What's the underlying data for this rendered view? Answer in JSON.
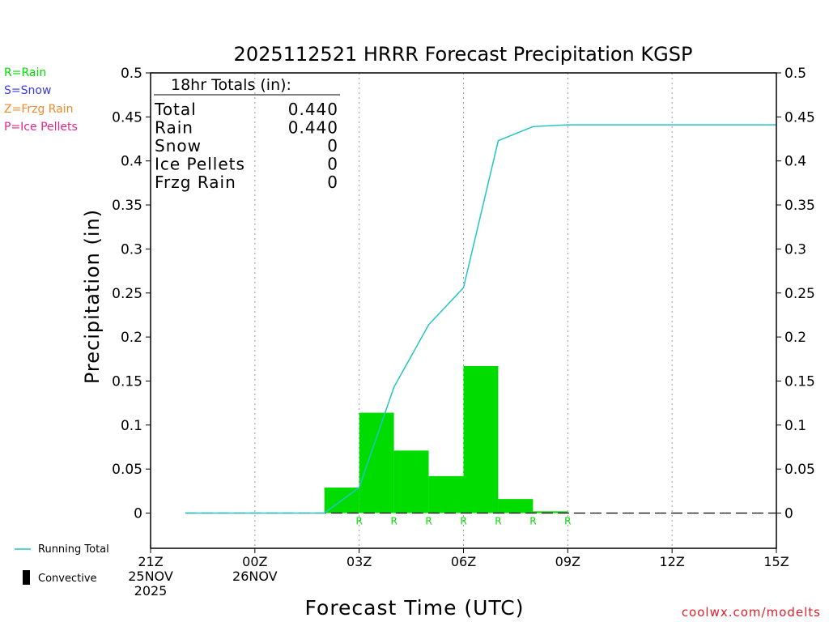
{
  "chart_data": {
    "type": "bar",
    "title": "2025112521 HRRR Forecast Precipitation KGSP",
    "xlabel": "Forecast Time (UTC)",
    "ylabel": "Precipitation (in)",
    "ylim": [
      -0.04,
      0.5
    ],
    "xlim": [
      0,
      18
    ],
    "grid": "vertical-dotted",
    "y_ticks": [
      0,
      0.05,
      0.1,
      0.15,
      0.2,
      0.25,
      0.3,
      0.35,
      0.4,
      0.45,
      0.5
    ],
    "y_tick_labels": [
      "0",
      "0.05",
      "0.1",
      "0.15",
      "0.2",
      "0.25",
      "0.3",
      "0.35",
      "0.4",
      "0.45",
      "0.5"
    ],
    "x_ticks": [
      {
        "x": 0,
        "lines": [
          "21Z",
          "25NOV",
          "2025"
        ]
      },
      {
        "x": 3,
        "lines": [
          "00Z",
          "26NOV"
        ]
      },
      {
        "x": 6,
        "lines": [
          "03Z"
        ]
      },
      {
        "x": 9,
        "lines": [
          "06Z"
        ]
      },
      {
        "x": 12,
        "lines": [
          "09Z"
        ]
      },
      {
        "x": 15,
        "lines": [
          "12Z"
        ]
      },
      {
        "x": 18,
        "lines": [
          "15Z"
        ]
      }
    ],
    "bars": [
      {
        "x": 5.5,
        "value": 0.029,
        "type_label": "R"
      },
      {
        "x": 6.5,
        "value": 0.114,
        "type_label": "R"
      },
      {
        "x": 7.5,
        "value": 0.071,
        "type_label": "R"
      },
      {
        "x": 8.5,
        "value": 0.042,
        "type_label": "R"
      },
      {
        "x": 9.5,
        "value": 0.167,
        "type_label": "R"
      },
      {
        "x": 10.5,
        "value": 0.016,
        "type_label": "R"
      },
      {
        "x": 11.5,
        "value": 0.002,
        "type_label": "R"
      }
    ],
    "running_total": {
      "name": "Running Total",
      "x": [
        1,
        2,
        3,
        4,
        5,
        6,
        7,
        8,
        9,
        10,
        11,
        12,
        13,
        14,
        15,
        16,
        17,
        18
      ],
      "y": [
        0,
        0,
        0,
        0,
        0,
        0.029,
        0.143,
        0.214,
        0.256,
        0.423,
        0.439,
        0.441,
        0.441,
        0.441,
        0.441,
        0.441,
        0.441,
        0.441
      ]
    },
    "colors": {
      "rain": "#00dc00",
      "running_total": "#22c4c4",
      "snow": "#3a3ae6",
      "frzg_rain": "#f08a2c",
      "ice_pellets": "#e6248a",
      "convective": "#000000",
      "credit": "#e01e2a"
    },
    "totals_box": {
      "header": "18hr Totals (in):",
      "rows": [
        {
          "label": "Total",
          "value": "0.440"
        },
        {
          "label": "Rain",
          "value": "0.440"
        },
        {
          "label": "Snow",
          "value": "0"
        },
        {
          "label": "Ice Pellets",
          "value": "0"
        },
        {
          "label": "Frzg Rain",
          "value": "0"
        }
      ]
    }
  },
  "type_legend": [
    {
      "text": "R=Rain",
      "color": "#00dc00"
    },
    {
      "text": "S=Snow",
      "color": "#3a3ae6"
    },
    {
      "text": "Z=Frzg Rain",
      "color": "#f08a2c"
    },
    {
      "text": "P=Ice Pellets",
      "color": "#e6248a"
    }
  ],
  "bottom_legend": {
    "running_total": "Running Total",
    "convective": "Convective"
  },
  "credit": "coolwx.com/modelts"
}
